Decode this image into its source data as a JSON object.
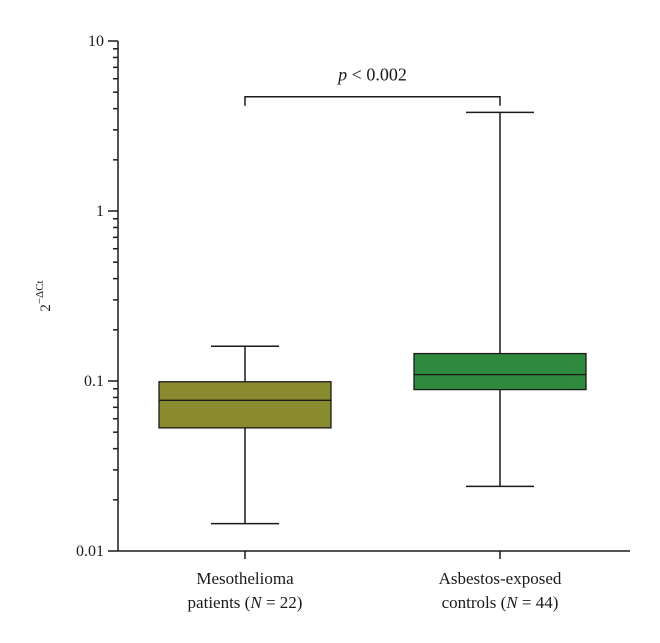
{
  "chart_data": {
    "type": "box",
    "y_scale": "log",
    "ylim": [
      0.01,
      10
    ],
    "y_ticks": [
      0.01,
      0.1,
      1,
      10
    ],
    "y_tick_labels": [
      "0.01",
      "0.1",
      "1",
      "10"
    ],
    "ylabel": {
      "base": "2",
      "superscript": "−ΔCt"
    },
    "grid": false,
    "categories": [
      {
        "line1": "Mesothelioma",
        "line2_prefix": "patients (",
        "line2_italic": "N",
        "line2_suffix": " = 22)"
      },
      {
        "line1": "Asbestos-exposed",
        "line2_prefix": "controls (",
        "line2_italic": "N",
        "line2_suffix": " = 44)"
      }
    ],
    "series": [
      {
        "min": 0.0145,
        "q1": 0.053,
        "median": 0.077,
        "q3": 0.099,
        "max": 0.16,
        "color": "#8a8a2e"
      },
      {
        "min": 0.024,
        "q1": 0.089,
        "median": 0.109,
        "q3": 0.145,
        "max": 3.8,
        "color": "#2e8b3e"
      }
    ],
    "annotation": {
      "italic": "p",
      "text": " < 0.002",
      "bracket_level": 4.7
    }
  }
}
